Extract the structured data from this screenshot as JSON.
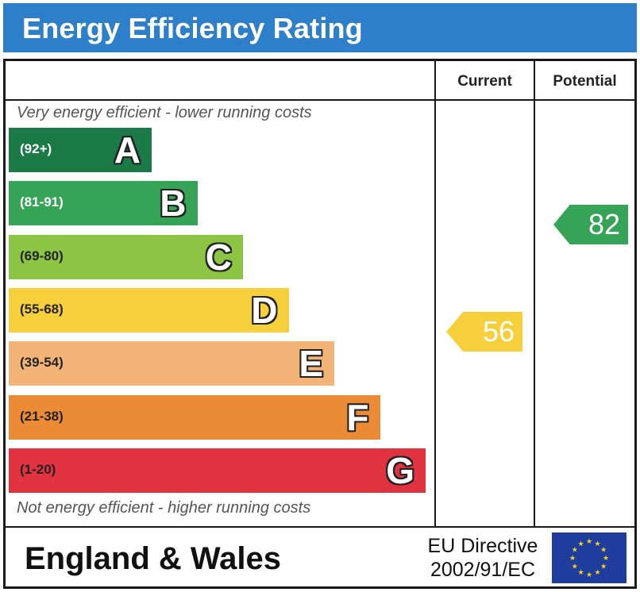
{
  "header": {
    "title": "Energy Efficiency Rating"
  },
  "columns": {
    "current": "Current",
    "potential": "Potential"
  },
  "captions": {
    "top": "Very energy efficient - lower running costs",
    "bottom": "Not energy efficient - higher running costs"
  },
  "footer": {
    "region": "England & Wales",
    "directive_line1": "EU Directive",
    "directive_line2": "2002/91/EC"
  },
  "colors": {
    "header_bg": "#2e7fc9",
    "flag_blue": "#1f3d9e",
    "flag_star": "#f6d21a"
  },
  "chart_data": {
    "type": "bar",
    "bands": [
      {
        "letter": "A",
        "range": "(92+)",
        "color": "#1b7a46",
        "text_color": "#ffffff"
      },
      {
        "letter": "B",
        "range": "(81-91)",
        "color": "#36a456",
        "text_color": "#ffffff"
      },
      {
        "letter": "C",
        "range": "(69-80)",
        "color": "#8cc444",
        "text_color": "#222222"
      },
      {
        "letter": "D",
        "range": "(55-68)",
        "color": "#f6d03a",
        "text_color": "#222222"
      },
      {
        "letter": "E",
        "range": "(39-54)",
        "color": "#f2b577",
        "text_color": "#222222"
      },
      {
        "letter": "F",
        "range": "(21-38)",
        "color": "#ec8b36",
        "text_color": "#222222"
      },
      {
        "letter": "G",
        "range": "(1-20)",
        "color": "#e0323f",
        "text_color": "#222222"
      }
    ],
    "current": {
      "value": 56,
      "band": "D",
      "color": "#f6d03a"
    },
    "potential": {
      "value": 82,
      "band": "B",
      "color": "#36a456"
    }
  }
}
